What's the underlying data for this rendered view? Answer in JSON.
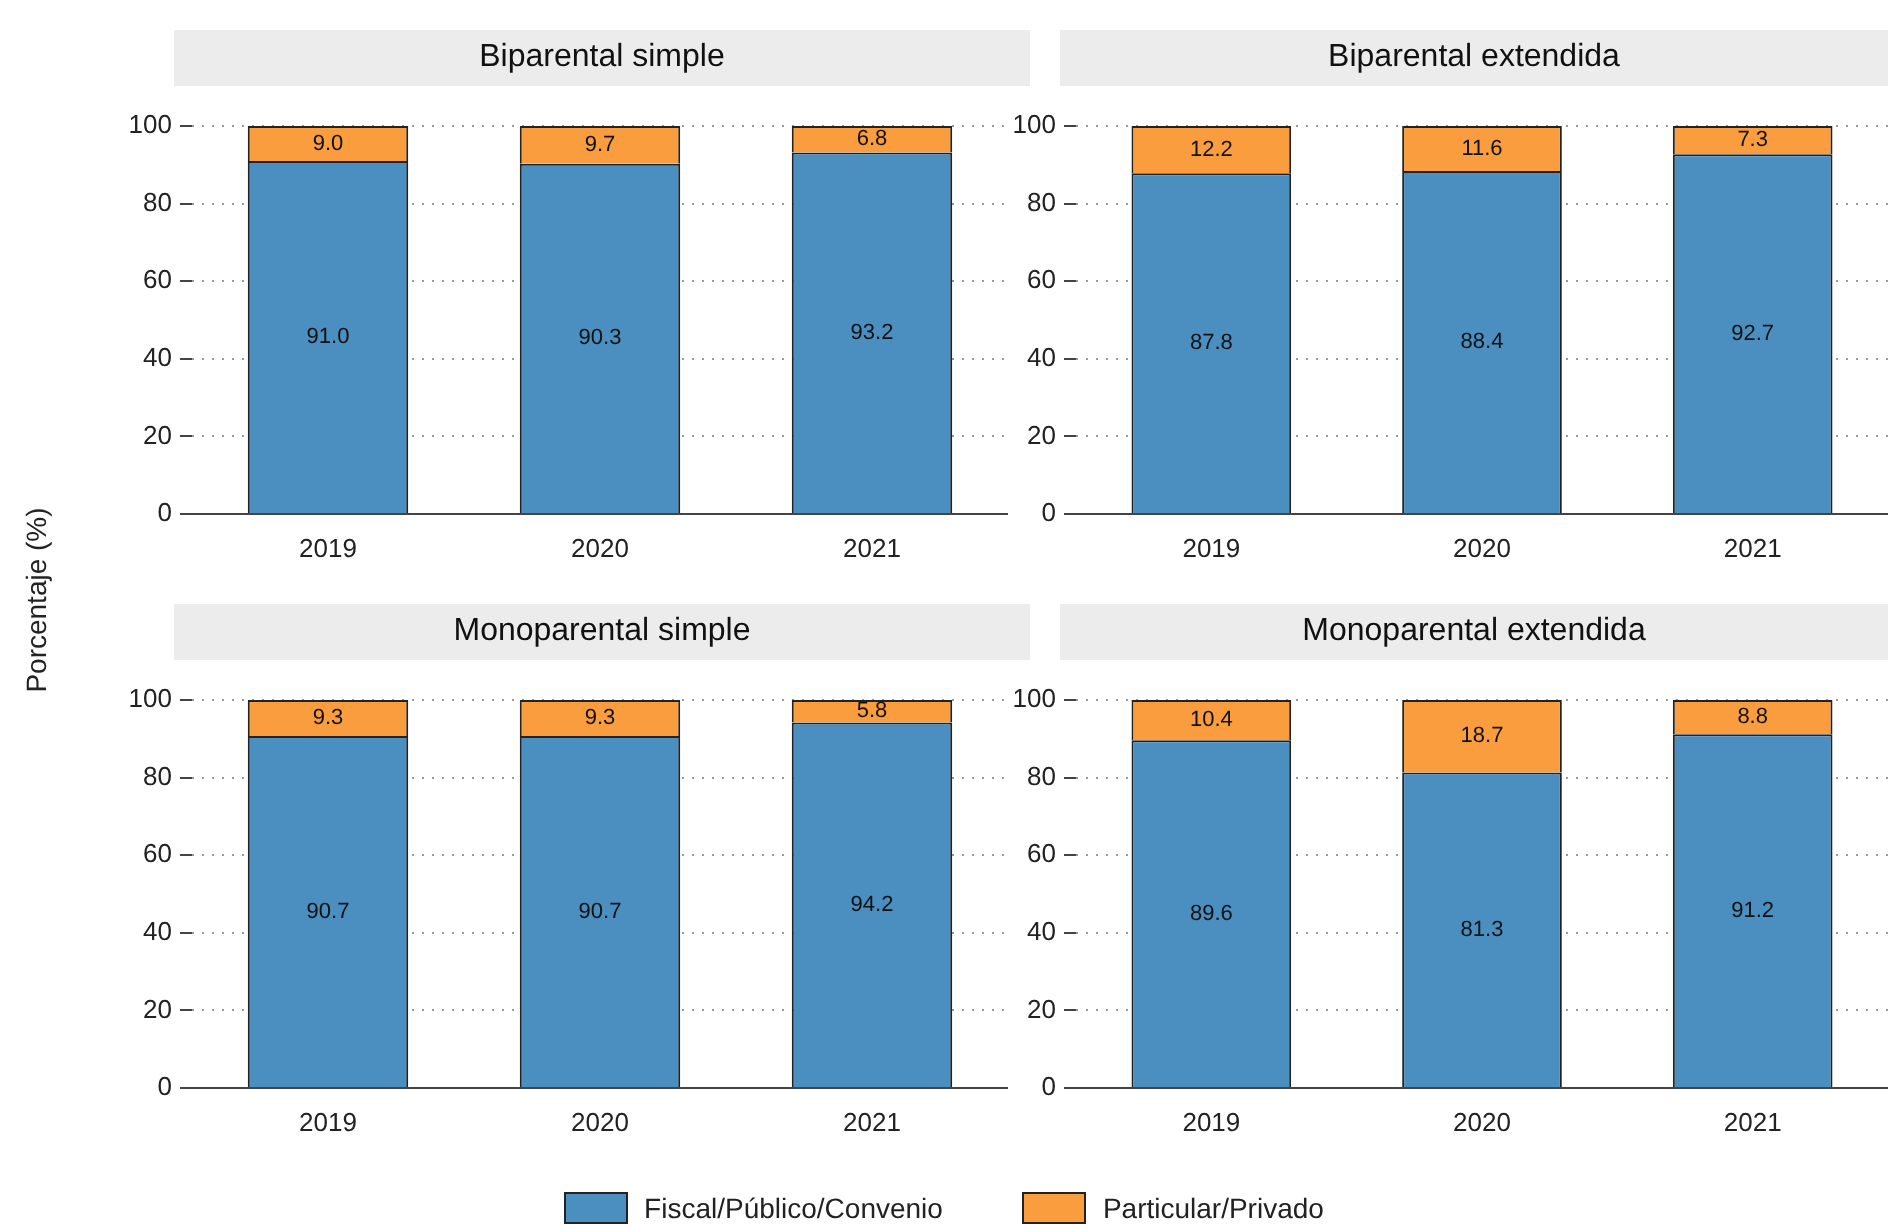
{
  "chart_data": [
    {
      "type": "bar",
      "title": "Biparental simple",
      "ylabel": "Porcentaje (%)",
      "categories": [
        "2019",
        "2020",
        "2021"
      ],
      "stacked": true,
      "ylim": [
        0,
        100
      ],
      "yticks": [
        0,
        20,
        40,
        60,
        80,
        100
      ],
      "grid": "y",
      "series": [
        {
          "color": "#4a8fc0",
          "values": [
            91.0,
            90.3,
            93.2
          ],
          "value_labels": [
            "91.0",
            "90.3",
            "93.2"
          ]
        },
        {
          "color": "#f99d3e",
          "values": [
            9.0,
            9.7,
            6.8
          ],
          "value_labels": [
            "9.0",
            "9.7",
            "6.8"
          ]
        }
      ]
    },
    {
      "type": "bar",
      "title": "Biparental extendida",
      "categories": [
        "2019",
        "2020",
        "2021"
      ],
      "stacked": true,
      "ylim": [
        0,
        100
      ],
      "yticks": [
        0,
        20,
        40,
        60,
        80,
        100
      ],
      "grid": "y",
      "series": [
        {
          "color": "#4a8fc0",
          "values": [
            87.8,
            88.4,
            92.7
          ],
          "value_labels": [
            "87.8",
            "88.4",
            "92.7"
          ]
        },
        {
          "color": "#f99d3e",
          "values": [
            12.2,
            11.6,
            7.3
          ],
          "value_labels": [
            "12.2",
            "11.6",
            "7.3"
          ]
        }
      ]
    },
    {
      "type": "bar",
      "title": "Monoparental simple",
      "categories": [
        "2019",
        "2020",
        "2021"
      ],
      "stacked": true,
      "ylim": [
        0,
        100
      ],
      "yticks": [
        0,
        20,
        40,
        60,
        80,
        100
      ],
      "grid": "y",
      "series": [
        {
          "color": "#4a8fc0",
          "values": [
            90.7,
            90.7,
            94.2
          ],
          "value_labels": [
            "90.7",
            "90.7",
            "94.2"
          ]
        },
        {
          "color": "#f99d3e",
          "values": [
            9.3,
            9.3,
            5.8
          ],
          "value_labels": [
            "9.3",
            "9.3",
            "5.8"
          ]
        }
      ]
    },
    {
      "type": "bar",
      "title": "Monoparental extendida",
      "categories": [
        "2019",
        "2020",
        "2021"
      ],
      "stacked": true,
      "ylim": [
        0,
        100
      ],
      "yticks": [
        0,
        20,
        40,
        60,
        80,
        100
      ],
      "grid": "y",
      "legend": "bottom",
      "series": [
        {
          "name": "Fiscal/Público/Convenio",
          "color": "#4a8fc0",
          "values": [
            89.6,
            81.3,
            91.2
          ],
          "value_labels": [
            "89.6",
            "81.3",
            "91.2"
          ]
        },
        {
          "name": "Particular/Privado",
          "color": "#f99d3e",
          "values": [
            10.4,
            18.7,
            8.8
          ],
          "value_labels": [
            "10.4",
            "18.7",
            "8.8"
          ]
        }
      ]
    }
  ]
}
